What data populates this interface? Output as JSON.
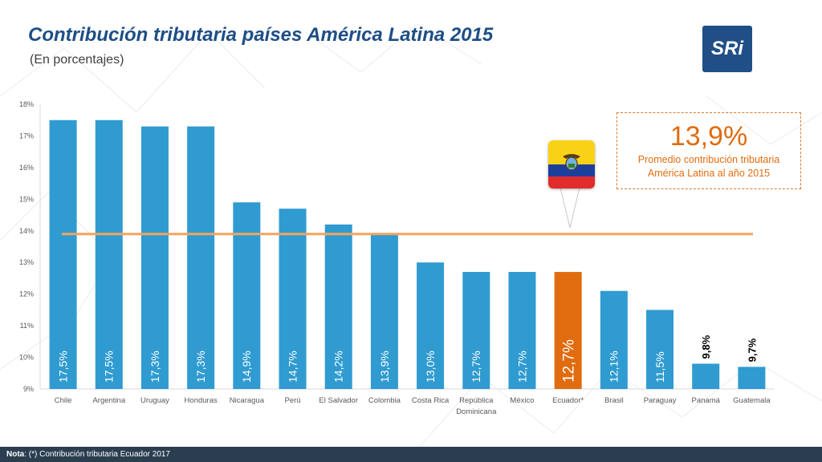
{
  "header": {
    "title": "Contribución tributaria países América Latina 2015",
    "subtitle": "(En porcentajes)",
    "logo_text": "SRi"
  },
  "callout": {
    "value": "13,9%",
    "line1": "Promedio contribución tributaria",
    "line2": "América Latina al año 2015"
  },
  "footer": {
    "label": "Nota",
    "text": ": (*) Contribución tributaria Ecuador 2017"
  },
  "colors": {
    "bar": "#2f9bd0",
    "highlight": "#e06c0f",
    "average_line": "#f4a460",
    "flag": "ecuador-flag"
  },
  "chart_data": {
    "type": "bar",
    "title": "Contribución tributaria países América Latina 2015",
    "subtitle": "(En porcentajes)",
    "categories": [
      "Chile",
      "Argentina",
      "Uruguay",
      "Honduras",
      "Nicaragua",
      "Perú",
      "El Salvador",
      "Colombia",
      "Costa Rica",
      "República Dominicana",
      "México",
      "Ecuador*",
      "Brasil",
      "Paraguay",
      "Panamá",
      "Guatemala"
    ],
    "values": [
      17.5,
      17.5,
      17.3,
      17.3,
      14.9,
      14.7,
      14.2,
      13.9,
      13.0,
      12.7,
      12.7,
      12.7,
      12.1,
      11.5,
      9.8,
      9.7
    ],
    "value_labels": [
      "17,5%",
      "17,5%",
      "17,3%",
      "17,3%",
      "14,9%",
      "14,7%",
      "14,2%",
      "13,9%",
      "13,0%",
      "12,7%",
      "12,7%",
      "12,7%",
      "12,1%",
      "11,5%",
      "9,8%",
      "9,7%"
    ],
    "highlight_index": 11,
    "average": 13.9,
    "ylim": [
      9,
      18
    ],
    "yticks": [
      9,
      10,
      11,
      12,
      13,
      14,
      15,
      16,
      17,
      18
    ],
    "ytick_labels": [
      "9%",
      "10%",
      "11%",
      "12%",
      "13%",
      "14%",
      "15%",
      "16%",
      "17%",
      "18%"
    ],
    "grid": false,
    "legend": "none"
  }
}
